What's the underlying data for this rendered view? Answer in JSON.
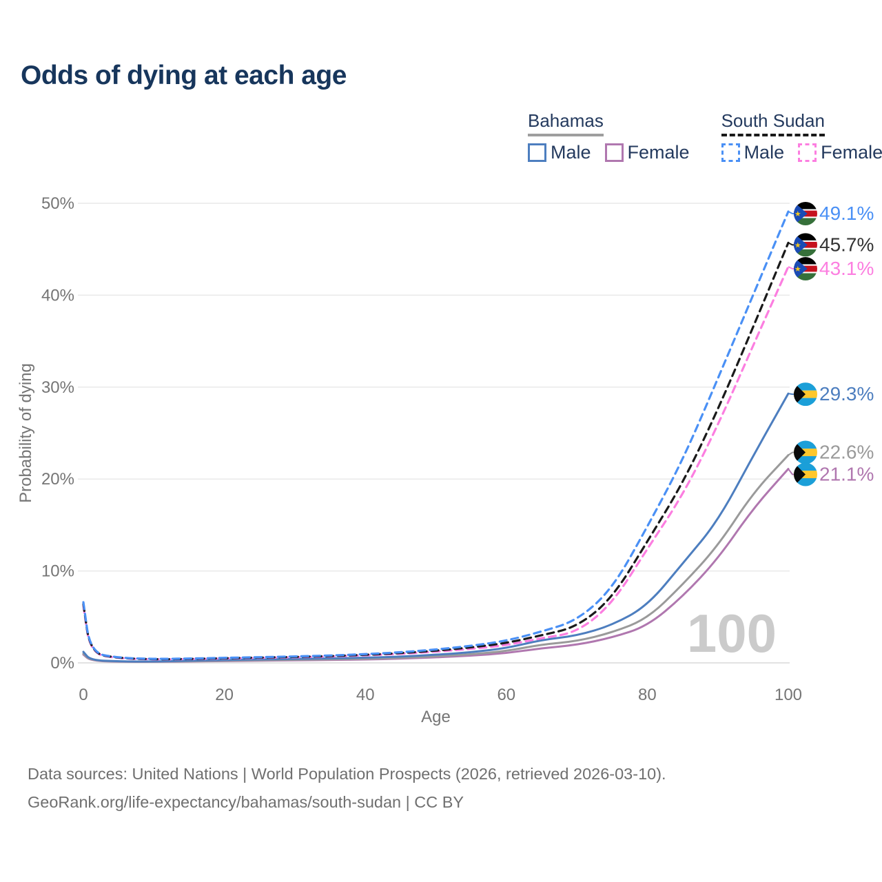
{
  "title": "Odds of dying at each age",
  "legend": {
    "groups": [
      {
        "label": "Bahamas",
        "style": "solid",
        "underline_color": "#9e9e9e",
        "items": [
          {
            "label": "Male",
            "color": "#4d7ebf",
            "dashed": false
          },
          {
            "label": "Female",
            "color": "#b077af",
            "dashed": false
          }
        ]
      },
      {
        "label": "South Sudan",
        "style": "dashed",
        "underline_color": "#1a1a1a",
        "items": [
          {
            "label": "Male",
            "color": "#4a90f5",
            "dashed": true
          },
          {
            "label": "Female",
            "color": "#fc7ee0",
            "dashed": true
          }
        ]
      }
    ]
  },
  "chart_data": {
    "type": "line",
    "xlabel": "Age",
    "ylabel": "Probability of dying",
    "xlim": [
      0,
      100
    ],
    "ylim": [
      0,
      50
    ],
    "grid": "horizontal",
    "watermark": "100",
    "x_ticks": [
      {
        "value": 0,
        "label": "0"
      },
      {
        "value": 20,
        "label": "20"
      },
      {
        "value": 40,
        "label": "40"
      },
      {
        "value": 60,
        "label": "60"
      },
      {
        "value": 80,
        "label": "80"
      },
      {
        "value": 100,
        "label": "100"
      }
    ],
    "y_ticks": [
      {
        "value": 0,
        "label": "0%"
      },
      {
        "value": 10,
        "label": "10%"
      },
      {
        "value": 20,
        "label": "20%"
      },
      {
        "value": 30,
        "label": "30%"
      },
      {
        "value": 40,
        "label": "40%"
      },
      {
        "value": 50,
        "label": "50%"
      }
    ],
    "x": [
      0,
      1,
      5,
      10,
      15,
      20,
      25,
      30,
      35,
      40,
      45,
      50,
      55,
      60,
      65,
      70,
      75,
      80,
      85,
      90,
      95,
      100
    ],
    "series": [
      {
        "name": "South Sudan Male",
        "country": "South Sudan",
        "sex": "Male",
        "color": "#4a90f5",
        "dash": true,
        "flag": "south-sudan",
        "end_label": "49.1%",
        "values": [
          6.6,
          1.1,
          0.55,
          0.42,
          0.47,
          0.55,
          0.62,
          0.7,
          0.8,
          0.95,
          1.15,
          1.45,
          1.85,
          2.4,
          3.4,
          4.6,
          8.0,
          14.8,
          22.0,
          30.9,
          40.0,
          49.1
        ]
      },
      {
        "name": "South Sudan Both sexes",
        "country": "South Sudan",
        "sex": "Both",
        "color": "#1a1a1a",
        "dash": true,
        "flag": "south-sudan",
        "end_label": "45.7%",
        "label_color": "#333333",
        "values": [
          6.4,
          1.05,
          0.52,
          0.39,
          0.43,
          0.51,
          0.58,
          0.65,
          0.74,
          0.88,
          1.06,
          1.33,
          1.68,
          2.15,
          3.0,
          3.9,
          7.0,
          13.2,
          19.5,
          27.5,
          36.5,
          45.7
        ]
      },
      {
        "name": "South Sudan Female",
        "country": "South Sudan",
        "sex": "Female",
        "color": "#fc7ee0",
        "dash": true,
        "flag": "south-sudan",
        "end_label": "43.1%",
        "values": [
          6.2,
          1.0,
          0.49,
          0.37,
          0.41,
          0.48,
          0.54,
          0.61,
          0.69,
          0.82,
          0.98,
          1.22,
          1.52,
          1.92,
          2.7,
          3.3,
          6.4,
          12.4,
          18.2,
          25.8,
          34.5,
          43.1
        ]
      },
      {
        "name": "Bahamas Male",
        "country": "Bahamas",
        "sex": "Male",
        "color": "#4d7ebf",
        "dash": false,
        "flag": "bahamas",
        "end_label": "29.3%",
        "values": [
          1.2,
          0.3,
          0.16,
          0.14,
          0.24,
          0.32,
          0.38,
          0.43,
          0.49,
          0.56,
          0.68,
          0.88,
          1.15,
          1.6,
          2.5,
          2.95,
          4.1,
          6.2,
          10.8,
          15.4,
          22.5,
          29.3
        ]
      },
      {
        "name": "Bahamas Both sexes",
        "country": "Bahamas",
        "sex": "Both",
        "color": "#9a9a9a",
        "dash": false,
        "flag": "bahamas",
        "end_label": "22.6%",
        "values": [
          1.0,
          0.27,
          0.14,
          0.12,
          0.19,
          0.25,
          0.3,
          0.34,
          0.39,
          0.45,
          0.55,
          0.71,
          0.93,
          1.28,
          2.0,
          2.35,
          3.3,
          4.8,
          8.5,
          12.7,
          18.5,
          22.6
        ]
      },
      {
        "name": "Bahamas Female",
        "country": "Bahamas",
        "sex": "Female",
        "color": "#b077af",
        "dash": false,
        "flag": "bahamas",
        "end_label": "21.1%",
        "values": [
          0.9,
          0.24,
          0.12,
          0.11,
          0.15,
          0.2,
          0.24,
          0.28,
          0.32,
          0.37,
          0.46,
          0.6,
          0.78,
          1.05,
          1.6,
          1.95,
          2.75,
          4.0,
          7.2,
          11.3,
          16.8,
          21.1
        ]
      }
    ]
  },
  "footer": {
    "line1": "Data sources: United Nations | World Population Prospects (2026, retrieved 2026-03-10).",
    "line2": "GeoRank.org/life-expectancy/bahamas/south-sudan | CC BY"
  }
}
